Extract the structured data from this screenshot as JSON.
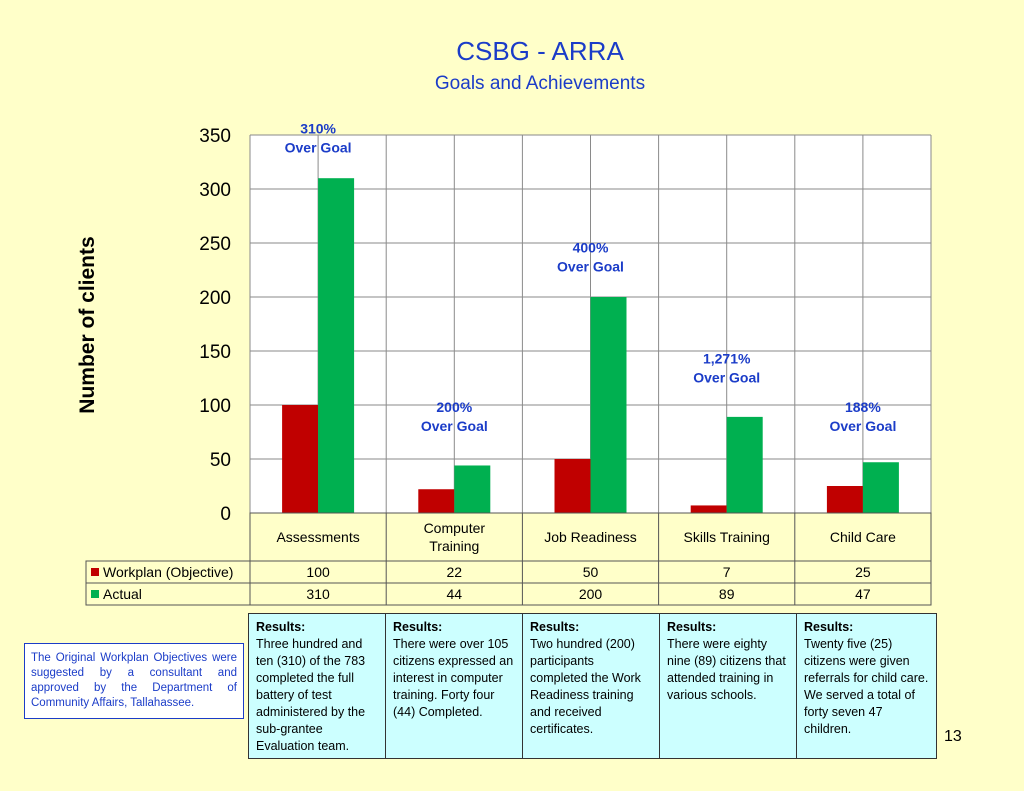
{
  "page": {
    "title": "CSBG - ARRA",
    "subtitle": "Goals and Achievements",
    "page_number": "13",
    "note": "The Original Workplan Objectives were suggested by a consultant and approved by the Department of Community Affairs, Tallahassee."
  },
  "chart_data": {
    "type": "bar",
    "title": "CSBG - ARRA",
    "subtitle": "Goals and Achievements",
    "ylabel": "Number of clients",
    "xlabel": "",
    "ylim": [
      0,
      350
    ],
    "yticks": [
      0,
      50,
      100,
      150,
      200,
      250,
      300,
      350
    ],
    "grid": true,
    "legend": "data-table-left",
    "categories": [
      "Assessments",
      "Computer Training",
      "Job Readiness",
      "Skills Training",
      "Child Care"
    ],
    "category_lines": [
      [
        "Assessments"
      ],
      [
        "Computer",
        "Training"
      ],
      [
        "Job Readiness"
      ],
      [
        "Skills Training"
      ],
      [
        "Child Care"
      ]
    ],
    "series": [
      {
        "name": "Workplan (Objective)",
        "color": "#c00000",
        "values": [
          100,
          22,
          50,
          7,
          25
        ]
      },
      {
        "name": "Actual",
        "color": "#00b050",
        "values": [
          310,
          44,
          200,
          89,
          47
        ]
      }
    ],
    "annotations": [
      {
        "category": "Assessments",
        "lines": [
          "310%",
          "Over Goal"
        ],
        "y_value": 355
      },
      {
        "category": "Computer Training",
        "lines": [
          "200%",
          "Over Goal"
        ],
        "y_value": 97
      },
      {
        "category": "Job Readiness",
        "lines": [
          "400%",
          "Over Goal"
        ],
        "y_value": 245
      },
      {
        "category": "Skills Training",
        "lines": [
          "1,271%",
          "Over Goal"
        ],
        "y_value": 142
      },
      {
        "category": "Child Care",
        "lines": [
          "188%",
          "Over Goal"
        ],
        "y_value": 97
      }
    ]
  },
  "results": [
    {
      "title": "Results:",
      "text": "Three hundred and ten (310) of the 783 completed the full battery of test administered by the sub-grantee Evaluation team."
    },
    {
      "title": "Results:",
      "text": "There were over 105 citizens expressed an interest in computer training. Forty four (44) Completed."
    },
    {
      "title": "Results:",
      "text": "Two hundred (200) participants completed the Work Readiness training and received certificates."
    },
    {
      "title": "Results:",
      "text": "There were eighty nine (89) citizens that attended training in various schools."
    },
    {
      "title": "Results:",
      "text": "Twenty five (25) citizens were given referrals for child care. We served a total of forty seven 47 children."
    }
  ]
}
